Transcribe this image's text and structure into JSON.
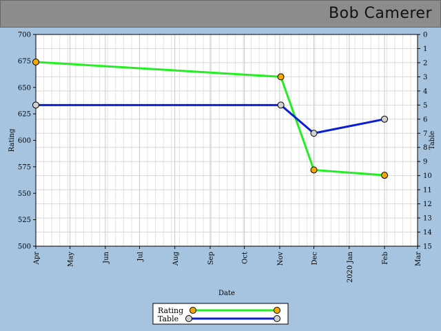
{
  "header": {
    "title": "Bob Camerer"
  },
  "chart_data": {
    "type": "line",
    "xlabel": "Date",
    "ylabel_left": "Rating",
    "ylabel_right": "Table",
    "ylim_left": [
      500,
      700
    ],
    "ylim_right": [
      0,
      15
    ],
    "x_ticks": [
      "Apr",
      "May",
      "Jun",
      "Jul",
      "Aug",
      "Sep",
      "Oct",
      "Nov",
      "Dec",
      "2020 Jan",
      "Feb",
      "Mar"
    ],
    "left_ticks": [
      "700",
      "675",
      "650",
      "625",
      "600",
      "575",
      "550",
      "525",
      "500"
    ],
    "right_ticks": [
      "0",
      "1",
      "2",
      "3",
      "4",
      "5",
      "6",
      "7",
      "8",
      "9",
      "10",
      "11",
      "12",
      "13",
      "14",
      "15"
    ],
    "grid": true,
    "legend_position": "bottom-center",
    "series": [
      {
        "name": "Rating",
        "axis": "left",
        "color": "#22ee22",
        "marker_color": "#f5a800",
        "points": [
          {
            "x": "2019-04-01",
            "y": 674
          },
          {
            "x": "2019-11-02",
            "y": 660
          },
          {
            "x": "2019-12-01",
            "y": 572
          },
          {
            "x": "2020-02-01",
            "y": 567
          }
        ]
      },
      {
        "name": "Table",
        "axis": "right",
        "color": "#0a1ed6",
        "marker_color": "#d0d0d0",
        "points": [
          {
            "x": "2019-04-01",
            "y": 5
          },
          {
            "x": "2019-11-02",
            "y": 5
          },
          {
            "x": "2019-12-01",
            "y": 7
          },
          {
            "x": "2020-02-01",
            "y": 6
          }
        ]
      }
    ]
  }
}
